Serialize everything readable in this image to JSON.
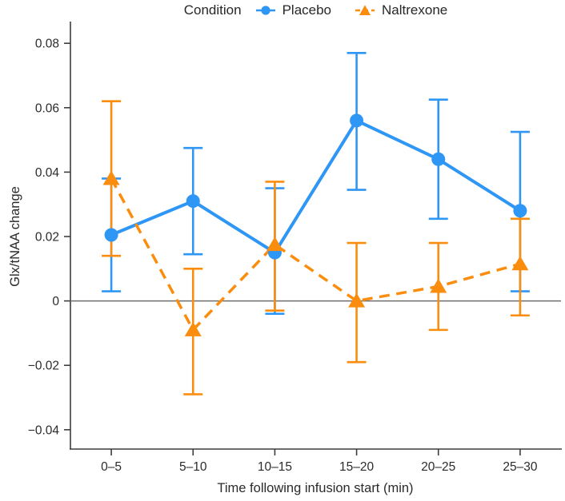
{
  "legend": {
    "title": "Condition",
    "items": [
      {
        "label": "Placebo",
        "color": "#2e96f5",
        "marker": "circle",
        "line": "solid"
      },
      {
        "label": "Naltrexone",
        "color": "#fb8d0e",
        "marker": "triangle",
        "line": "dashed"
      }
    ]
  },
  "colors": {
    "placebo": "#2e96f5",
    "naltrexone": "#fb8d0e",
    "axis": "#3d3d3d",
    "text": "#2b2b2b",
    "zero_line": "#6e6e6e"
  },
  "chart_data": {
    "type": "line",
    "title": "",
    "xlabel": "Time following infusion start (min)",
    "ylabel": "Glx/tNAA change",
    "categories": [
      "0–5",
      "5–10",
      "10–15",
      "15–20",
      "20–25",
      "25–30"
    ],
    "ylim": [
      -0.046,
      0.086
    ],
    "yticks": [
      {
        "value": 0.08,
        "label": "0.08"
      },
      {
        "value": 0.06,
        "label": "0.06"
      },
      {
        "value": 0.04,
        "label": "0.04"
      },
      {
        "value": 0.02,
        "label": "0.02"
      },
      {
        "value": 0,
        "label": "0"
      },
      {
        "value": -0.02,
        "label": "−0.02"
      },
      {
        "value": -0.04,
        "label": "−0.04"
      }
    ],
    "zero_line": true,
    "grid": false,
    "legend_position": "top",
    "series": [
      {
        "name": "Placebo",
        "color": "#2e96f5",
        "marker": "circle",
        "line": "solid",
        "values": [
          0.0205,
          0.031,
          0.015,
          0.056,
          0.044,
          0.028
        ],
        "err_low": [
          0.003,
          0.0145,
          -0.004,
          0.0345,
          0.0255,
          0.003
        ],
        "err_high": [
          0.038,
          0.0475,
          0.035,
          0.077,
          0.0625,
          0.0525
        ]
      },
      {
        "name": "Naltrexone",
        "color": "#fb8d0e",
        "marker": "triangle",
        "line": "dashed",
        "values": [
          0.038,
          -0.009,
          0.0175,
          0.0,
          0.0045,
          0.0115
        ],
        "err_low": [
          0.014,
          -0.029,
          -0.003,
          -0.019,
          -0.009,
          -0.0045
        ],
        "err_high": [
          0.062,
          0.01,
          0.037,
          0.018,
          0.018,
          0.0255
        ]
      }
    ]
  }
}
